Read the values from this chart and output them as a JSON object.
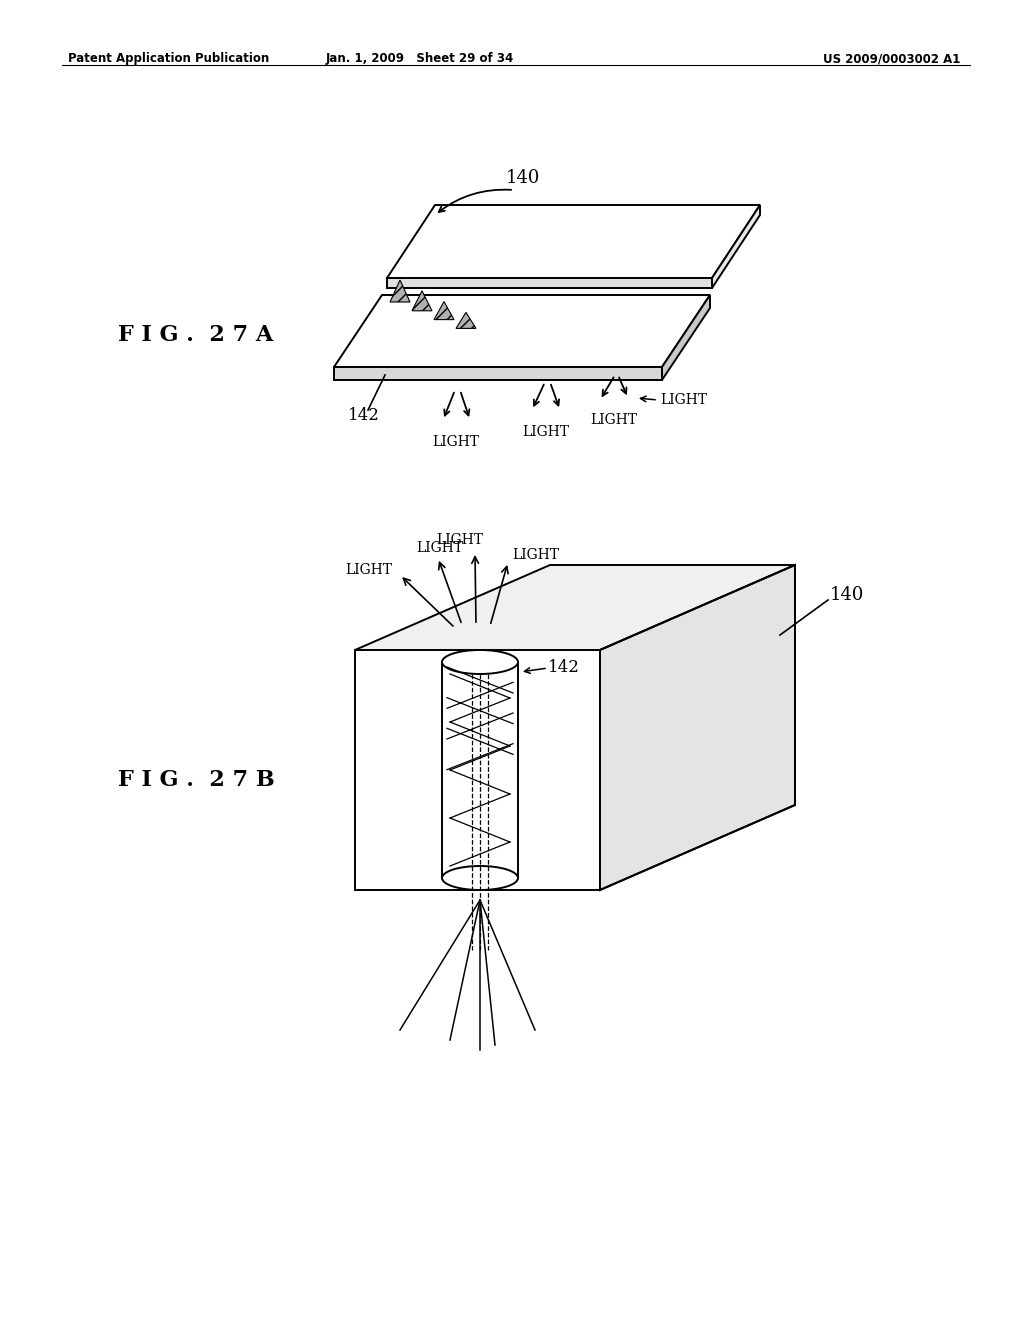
{
  "background_color": "#ffffff",
  "header_left": "Patent Application Publication",
  "header_mid": "Jan. 1, 2009   Sheet 29 of 34",
  "header_right": "US 2009/0003002 A1",
  "fig_label_A": "FIG. 27A",
  "fig_label_B": "FIG. 27B",
  "label_140": "140",
  "label_142": "142",
  "label_light": "LIGHT"
}
